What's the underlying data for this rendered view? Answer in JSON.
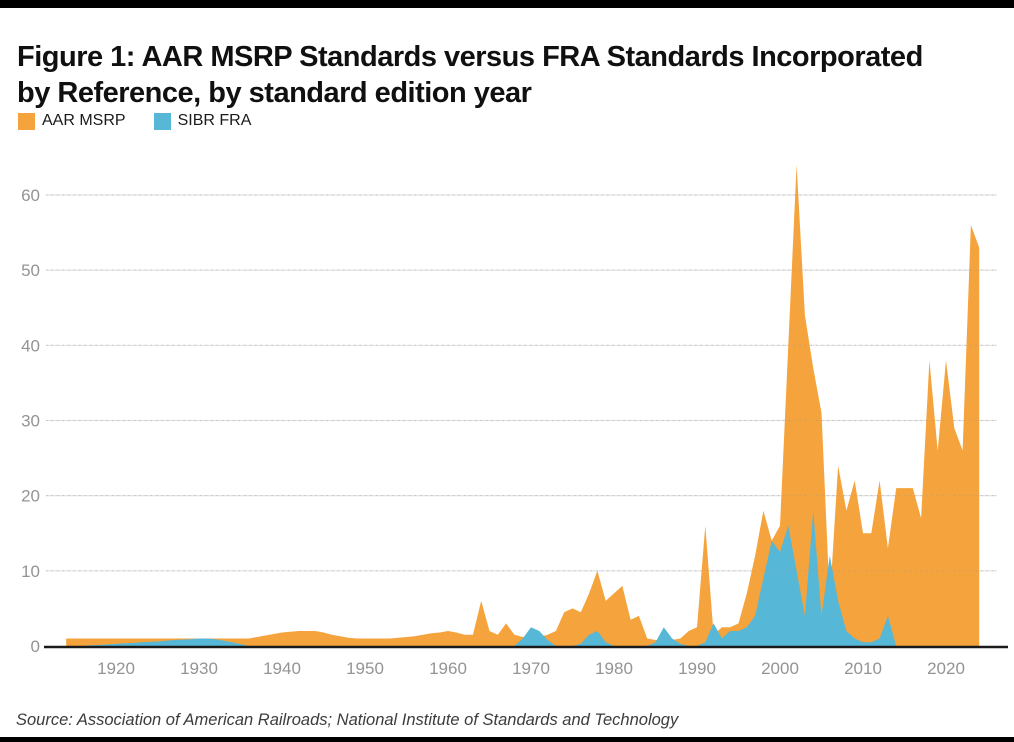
{
  "header": {
    "title": "Figure 1: AAR MSRP Standards versus FRA Standards Incorporated by Reference, by standard edition year"
  },
  "legend": [
    {
      "label": "AAR MSRP",
      "color": "#F5A33C"
    },
    {
      "label": "SIBR FRA",
      "color": "#56B7D7"
    }
  ],
  "source": "Source: Association of American Railroads; National Institute of Standards and Technology",
  "colors": {
    "background": "#ffffff",
    "frame_bars": "#000000",
    "gridline": "#e2e2e2",
    "gridline_dotted": "#999999",
    "baseline": "#1a1a1a",
    "axis_label": "#949494",
    "title_text": "#101010"
  },
  "chart_data": {
    "type": "area",
    "title": "Figure 1: AAR MSRP Standards versus FRA Standards Incorporated by Reference, by standard edition year",
    "xlabel": "",
    "ylabel": "",
    "grid": "horizontal",
    "legend_position": "top-left",
    "xlim": [
      1913.5,
      2026
    ],
    "ylim": [
      0,
      65
    ],
    "x_ticks": [
      1920,
      1930,
      1940,
      1950,
      1960,
      1970,
      1980,
      1990,
      2000,
      2010,
      2020
    ],
    "y_ticks": [
      0,
      10,
      20,
      30,
      40,
      50,
      60
    ],
    "x": [
      1914,
      1915,
      1916,
      1917,
      1918,
      1919,
      1920,
      1921,
      1922,
      1923,
      1924,
      1925,
      1926,
      1927,
      1928,
      1929,
      1930,
      1931,
      1932,
      1933,
      1934,
      1935,
      1936,
      1937,
      1938,
      1939,
      1940,
      1941,
      1942,
      1943,
      1944,
      1945,
      1946,
      1947,
      1948,
      1949,
      1950,
      1951,
      1952,
      1953,
      1954,
      1955,
      1956,
      1957,
      1958,
      1959,
      1960,
      1961,
      1962,
      1963,
      1964,
      1965,
      1966,
      1967,
      1968,
      1969,
      1970,
      1971,
      1972,
      1973,
      1974,
      1975,
      1976,
      1977,
      1978,
      1979,
      1980,
      1981,
      1982,
      1983,
      1984,
      1985,
      1986,
      1987,
      1988,
      1989,
      1990,
      1991,
      1992,
      1993,
      1994,
      1995,
      1996,
      1997,
      1998,
      1999,
      2000,
      2001,
      2002,
      2003,
      2004,
      2005,
      2006,
      2007,
      2008,
      2009,
      2010,
      2011,
      2012,
      2013,
      2014,
      2015,
      2016,
      2017,
      2018,
      2019,
      2020,
      2021,
      2022,
      2023,
      2024
    ],
    "series": [
      {
        "name": "AAR MSRP",
        "color": "#F5A33C",
        "values": [
          1,
          1,
          1,
          1,
          1,
          1,
          1,
          1,
          1,
          1,
          1,
          1,
          1,
          1,
          1,
          1,
          1,
          1,
          1,
          1,
          1,
          1,
          1,
          1.2,
          1.4,
          1.6,
          1.8,
          1.9,
          2,
          2,
          2,
          1.8,
          1.5,
          1.3,
          1.1,
          1,
          1,
          1,
          1,
          1,
          1.1,
          1.2,
          1.3,
          1.5,
          1.7,
          1.8,
          2,
          1.8,
          1.5,
          1.5,
          6,
          2,
          1.5,
          3,
          1.5,
          1.2,
          1.2,
          1.2,
          1.5,
          2,
          4.5,
          5,
          4.5,
          7,
          10,
          6,
          7,
          8,
          3.5,
          4,
          1,
          0.8,
          0.8,
          0.8,
          1,
          2,
          2.5,
          16,
          1.5,
          2.5,
          2.5,
          3,
          7,
          12,
          18,
          14,
          16,
          40,
          64,
          44,
          37,
          31,
          6,
          24,
          18,
          22,
          15,
          15,
          22,
          13,
          21,
          21,
          21,
          17,
          38,
          26,
          38,
          29,
          26,
          56,
          53
        ]
      },
      {
        "name": "SIBR FRA",
        "color": "#56B7D7",
        "values": [
          0,
          0,
          0,
          0.1,
          0.15,
          0.2,
          0.3,
          0.35,
          0.4,
          0.5,
          0.55,
          0.6,
          0.7,
          0.8,
          0.85,
          0.9,
          1,
          1,
          0.9,
          0.7,
          0.5,
          0.25,
          0,
          0,
          0,
          0,
          0,
          0,
          0,
          0,
          0,
          0,
          0,
          0,
          0,
          0,
          0,
          0,
          0,
          0,
          0,
          0,
          0,
          0,
          0,
          0,
          0,
          0,
          0,
          0,
          0,
          0,
          0,
          0,
          0,
          1,
          2.5,
          2,
          0.8,
          0,
          0,
          0,
          0.3,
          1.5,
          2,
          0.5,
          0,
          0,
          0,
          0,
          0,
          0.5,
          2.5,
          1,
          0.3,
          0,
          0,
          0.5,
          3,
          1,
          2,
          2,
          2.5,
          4,
          9,
          14,
          12.5,
          16,
          10,
          4,
          18,
          4,
          12,
          6,
          2,
          1,
          0.5,
          0.5,
          1,
          4,
          0,
          0,
          0,
          0,
          0,
          0,
          0,
          0,
          0,
          0,
          0
        ]
      }
    ]
  },
  "axes_note": {
    "y_axis_side": "left",
    "x_axis_note": "standard edition year"
  }
}
